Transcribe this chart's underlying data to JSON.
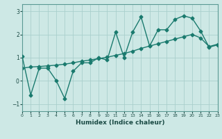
{
  "title": "",
  "xlabel": "Humidex (Indice chaleur)",
  "ylabel": "",
  "bg_color": "#cde8e5",
  "grid_color": "#aacfcc",
  "line_color": "#1a7a6e",
  "line1_x": [
    0,
    1,
    2,
    3,
    4,
    5,
    6,
    7,
    8,
    9,
    10,
    11,
    12,
    13,
    14,
    15,
    16,
    17,
    18,
    19,
    20,
    21,
    22,
    23
  ],
  "line1_y": [
    1.05,
    -0.6,
    0.55,
    0.55,
    0.02,
    -0.75,
    0.42,
    0.78,
    0.78,
    1.0,
    0.9,
    2.1,
    1.0,
    2.1,
    2.75,
    1.5,
    2.2,
    2.2,
    2.65,
    2.8,
    2.7,
    2.15,
    1.45,
    1.55
  ],
  "line2_x": [
    0,
    1,
    2,
    3,
    4,
    5,
    6,
    7,
    8,
    9,
    10,
    11,
    12,
    13,
    14,
    15,
    16,
    17,
    18,
    19,
    20,
    21,
    22,
    23
  ],
  "line2_y": [
    0.55,
    0.6,
    0.62,
    0.65,
    0.68,
    0.72,
    0.78,
    0.85,
    0.9,
    0.96,
    1.02,
    1.1,
    1.18,
    1.28,
    1.4,
    1.5,
    1.6,
    1.7,
    1.8,
    1.9,
    2.0,
    1.85,
    1.48,
    1.58
  ],
  "xlim": [
    0,
    23
  ],
  "ylim": [
    -1.3,
    3.3
  ],
  "yticks": [
    -1,
    0,
    1,
    2,
    3
  ],
  "xticks": [
    0,
    1,
    2,
    3,
    4,
    5,
    6,
    7,
    8,
    9,
    10,
    11,
    12,
    13,
    14,
    15,
    16,
    17,
    18,
    19,
    20,
    21,
    22,
    23
  ],
  "marker": "D",
  "markersize": 2.5,
  "linewidth": 1.0
}
